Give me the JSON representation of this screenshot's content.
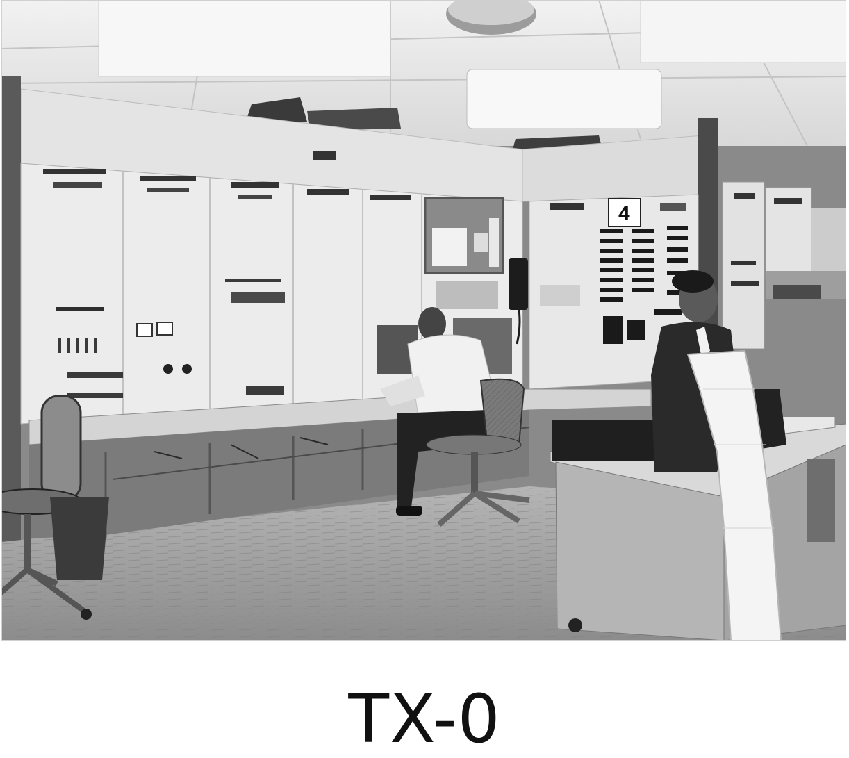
{
  "photo": {
    "panel_number": "4",
    "colors": {
      "ceiling": "#e6e6e6",
      "wall": "#d9d9d9",
      "panel": "#e9e9e9",
      "floor": "#9a9a9a",
      "shadow": "#2a2a2a"
    }
  },
  "caption": {
    "text": "TX-0"
  }
}
